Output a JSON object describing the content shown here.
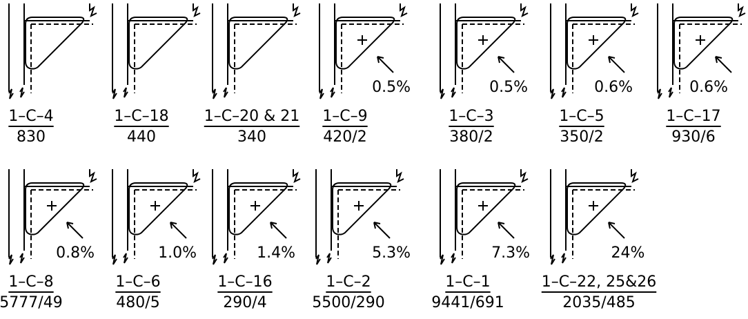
{
  "panels": [
    {
      "label": "1–C–4",
      "count": "830"
    },
    {
      "label": "1–C–18",
      "count": "440"
    },
    {
      "label": "1–C–20 & 21",
      "count": "340"
    },
    {
      "label": "1–C–9",
      "count": "420/2",
      "percent": "0.5%"
    },
    {
      "label": "1–C–3",
      "count": "380/2",
      "percent": "0.5%"
    },
    {
      "label": "1–C–5",
      "count": "350/2",
      "percent": "0.6%"
    },
    {
      "label": "1–C–17",
      "count": "930/6",
      "percent": "0.6%"
    },
    {
      "label": "1–C–8",
      "count": "5777/49",
      "percent": "0.8%"
    },
    {
      "label": "1–C–6",
      "count": "480/5",
      "percent": "1.0%"
    },
    {
      "label": "1–C–16",
      "count": "290/4",
      "percent": "1.4%"
    },
    {
      "label": "1–C–2",
      "count": "5500/290",
      "percent": "5.3%"
    },
    {
      "label": "1–C–1",
      "count": "9441/691",
      "percent": "7.3%"
    },
    {
      "label": "1–C–22, 25&26",
      "count": "2035/485",
      "percent": "24%"
    }
  ]
}
